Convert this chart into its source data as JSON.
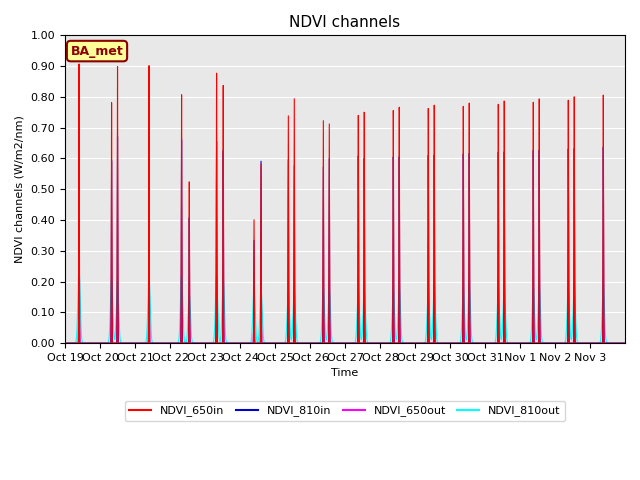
{
  "title": "NDVI channels",
  "ylabel": "NDVI channels (W/m2/nm)",
  "xlabel": "Time",
  "ylim": [
    0.0,
    1.0
  ],
  "yticks": [
    0.0,
    0.1,
    0.2,
    0.3,
    0.4,
    0.5,
    0.6,
    0.7,
    0.8,
    0.9,
    1.0
  ],
  "xtick_labels": [
    "Oct 19",
    "Oct 20",
    "Oct 21",
    "Oct 22",
    "Oct 23",
    "Oct 24",
    "Oct 25",
    "Oct 26",
    "Oct 27",
    "Oct 28",
    "Oct 29",
    "Oct 30",
    "Oct 31",
    "Nov 1",
    "Nov 2",
    "Nov 3"
  ],
  "colors": {
    "NDVI_650in": "#FF0000",
    "NDVI_810in": "#0000CC",
    "NDVI_650out": "#FF00FF",
    "NDVI_810out": "#00FFFF"
  },
  "annotation": "BA_met",
  "background_color": "#E8E8E8",
  "n_days": 16,
  "spike_groups": [
    {
      "day": 0,
      "t1": 0.35,
      "t2": 0.55,
      "p650in_1": 0.91,
      "p810in_1": 0.69,
      "p650out_1": 0.13,
      "p810out_1": 0.25,
      "p650in_2": 0.0,
      "p810in_2": 0.0,
      "p650out_2": 0.0,
      "p810out_2": 0.0
    },
    {
      "day": 1,
      "t1": 0.35,
      "t2": 0.55,
      "p650in_1": 0.79,
      "p810in_1": 0.6,
      "p650out_1": 0.1,
      "p810out_1": 0.21,
      "p650in_2": 0.91,
      "p810in_2": 0.68,
      "p650out_2": 0.13,
      "p810out_2": 0.2
    },
    {
      "day": 2,
      "t1": 0.35,
      "t2": 0.55,
      "p650in_1": 0.92,
      "p810in_1": 0.7,
      "p650out_1": 0.14,
      "p810out_1": 0.22,
      "p650in_2": 0.0,
      "p810in_2": 0.0,
      "p650out_2": 0.0,
      "p810out_2": 0.0
    },
    {
      "day": 3,
      "t1": 0.35,
      "t2": 0.55,
      "p650in_1": 0.83,
      "p810in_1": 0.68,
      "p650out_1": 0.13,
      "p810out_1": 0.22,
      "p650in_2": 0.54,
      "p810in_2": 0.42,
      "p650out_2": 0.09,
      "p810out_2": 0.16
    },
    {
      "day": 4,
      "t1": 0.35,
      "t2": 0.55,
      "p650in_1": 0.91,
      "p810in_1": 0.68,
      "p650out_1": 0.12,
      "p810out_1": 0.22,
      "p650in_2": 0.87,
      "p810in_2": 0.65,
      "p650out_2": 0.11,
      "p810out_2": 0.21
    },
    {
      "day": 5,
      "t1": 0.45,
      "t2": 0.0,
      "p650in_1": 0.42,
      "p810in_1": 0.35,
      "p650out_1": 0.08,
      "p810out_1": 0.19,
      "p650in_2": 0.61,
      "p810in_2": 0.62,
      "p650out_2": 0.1,
      "p810out_2": 0.18
    },
    {
      "day": 6,
      "t1": 0.35,
      "t2": 0.55,
      "p650in_1": 0.78,
      "p810in_1": 0.63,
      "p650out_1": 0.1,
      "p810out_1": 0.17,
      "p650in_2": 0.84,
      "p810in_2": 0.61,
      "p650out_2": 0.1,
      "p810out_2": 0.18
    },
    {
      "day": 7,
      "t1": 0.35,
      "t2": 0.55,
      "p650in_1": 0.77,
      "p810in_1": 0.61,
      "p650out_1": 0.1,
      "p810out_1": 0.18,
      "p650in_2": 0.76,
      "p810in_2": 0.64,
      "p650out_2": 0.1,
      "p810out_2": 0.18
    },
    {
      "day": 8,
      "t1": 0.35,
      "t2": 0.55,
      "p650in_1": 0.79,
      "p810in_1": 0.65,
      "p650out_1": 0.1,
      "p810out_1": 0.18,
      "p650in_2": 0.8,
      "p810in_2": 0.64,
      "p650out_2": 0.1,
      "p810out_2": 0.18
    },
    {
      "day": 9,
      "t1": 0.35,
      "t2": 0.55,
      "p650in_1": 0.8,
      "p810in_1": 0.64,
      "p650out_1": 0.1,
      "p810out_1": 0.18,
      "p650in_2": 0.81,
      "p810in_2": 0.64,
      "p650out_2": 0.1,
      "p810out_2": 0.19
    }
  ],
  "title_fontsize": 11,
  "label_fontsize": 8,
  "legend_fontsize": 8
}
